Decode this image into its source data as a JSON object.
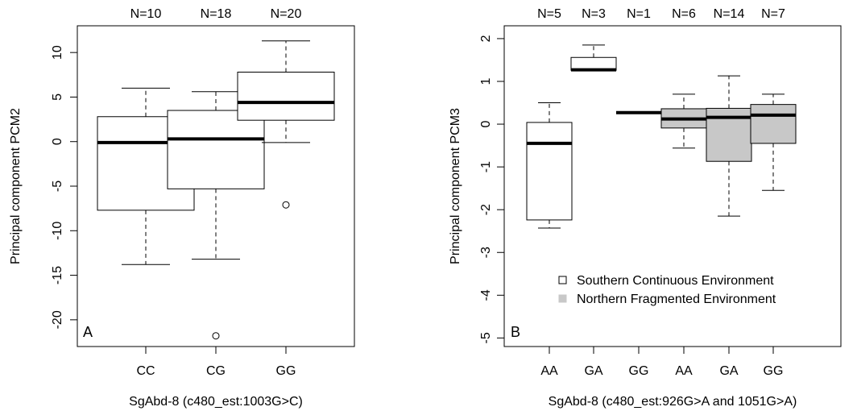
{
  "chart_data": [
    {
      "type": "boxplot",
      "panel_label": "A",
      "xlabel": "SgAbd-8 (c480_est:1003G>C)",
      "ylabel": "Principal component PCM2",
      "ylim": [
        -23,
        13
      ],
      "y_ticks": [
        10,
        5,
        0,
        -5,
        -10,
        -15,
        -20
      ],
      "grid": false,
      "categories": [
        "CC",
        "CG",
        "GG"
      ],
      "counts": [
        "N=10",
        "N=18",
        "N=20"
      ],
      "fill": [
        "#ffffff",
        "#ffffff",
        "#ffffff"
      ],
      "boxes": [
        {
          "whisker_low": -13.8,
          "q1": -7.7,
          "median": -0.1,
          "q3": 2.8,
          "whisker_high": 6.0,
          "outliers": []
        },
        {
          "whisker_low": -13.2,
          "q1": -5.3,
          "median": 0.3,
          "q3": 3.5,
          "whisker_high": 5.6,
          "outliers": [
            -21.8
          ]
        },
        {
          "whisker_low": -0.1,
          "q1": 2.4,
          "median": 4.4,
          "q3": 7.8,
          "whisker_high": 11.3,
          "outliers": [
            -7.1
          ]
        }
      ]
    },
    {
      "type": "boxplot",
      "panel_label": "B",
      "xlabel": "SgAbd-8 (c480_est:926G>A and 1051G>A)",
      "ylabel": "Principal component PCM3",
      "ylim": [
        -5.2,
        2.3
      ],
      "y_ticks": [
        2,
        1,
        0,
        -1,
        -2,
        -3,
        -4,
        -5
      ],
      "grid": false,
      "categories": [
        "AA",
        "GA",
        "GG",
        "AA",
        "GA",
        "GG"
      ],
      "counts": [
        "N=5",
        "N=3",
        "N=1",
        "N=6",
        "N=14",
        "N=7"
      ],
      "fill": [
        "#ffffff",
        "#ffffff",
        "#ffffff",
        "#c8c8c8",
        "#c8c8c8",
        "#c8c8c8"
      ],
      "boxes": [
        {
          "whisker_low": -2.43,
          "q1": -2.24,
          "median": -0.45,
          "q3": 0.04,
          "whisker_high": 0.5,
          "outliers": []
        },
        {
          "whisker_low": 1.26,
          "q1": 1.26,
          "median": 1.27,
          "q3": 1.56,
          "whisker_high": 1.85,
          "outliers": []
        },
        {
          "whisker_low": 0.27,
          "q1": 0.27,
          "median": 0.27,
          "q3": 0.27,
          "whisker_high": 0.27,
          "outliers": []
        },
        {
          "whisker_low": -0.56,
          "q1": -0.09,
          "median": 0.12,
          "q3": 0.36,
          "whisker_high": 0.7,
          "outliers": []
        },
        {
          "whisker_low": -2.15,
          "q1": -0.87,
          "median": 0.16,
          "q3": 0.37,
          "whisker_high": 1.13,
          "outliers": []
        },
        {
          "whisker_low": -1.55,
          "q1": -0.45,
          "median": 0.21,
          "q3": 0.46,
          "whisker_high": 0.7,
          "outliers": []
        }
      ],
      "legend": {
        "placement": "bottom-right",
        "entries": [
          {
            "label": "Southern Continuous Environment",
            "color": "#ffffff"
          },
          {
            "label": "Northern Fragmented Environment",
            "color": "#c8c8c8"
          }
        ]
      }
    }
  ]
}
